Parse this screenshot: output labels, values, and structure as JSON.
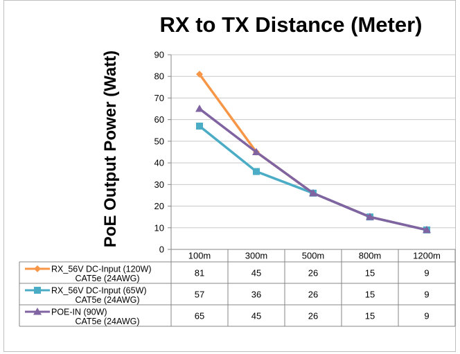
{
  "chart_data": {
    "type": "line",
    "title": "RX to TX Distance (Meter)",
    "ylabel": "PoE Output Power (Watt)",
    "xlabel": "",
    "ylim": [
      0,
      90
    ],
    "yticks": [
      0,
      10,
      20,
      30,
      40,
      50,
      60,
      70,
      80,
      90
    ],
    "grid": "horizontal",
    "legend": "data-table-left",
    "categories": [
      "100m",
      "300m",
      "500m",
      "800m",
      "1200m"
    ],
    "series": [
      {
        "name": "RX_56V DC-Input  (120W)",
        "name_line2": "CAT5e (24AWG)",
        "values": [
          81,
          45,
          26,
          15,
          9
        ],
        "color": "#f79646",
        "marker": "diamond"
      },
      {
        "name": "RX_56V DC-Input  (65W)",
        "name_line2": "CAT5e (24AWG)",
        "values": [
          57,
          36,
          26,
          15,
          9
        ],
        "color": "#4bacc6",
        "marker": "square"
      },
      {
        "name": "POE-IN  (90W)",
        "name_line2": "CAT5e (24AWG)",
        "values": [
          65,
          45,
          26,
          15,
          9
        ],
        "color": "#8064a2",
        "marker": "triangle"
      }
    ]
  }
}
